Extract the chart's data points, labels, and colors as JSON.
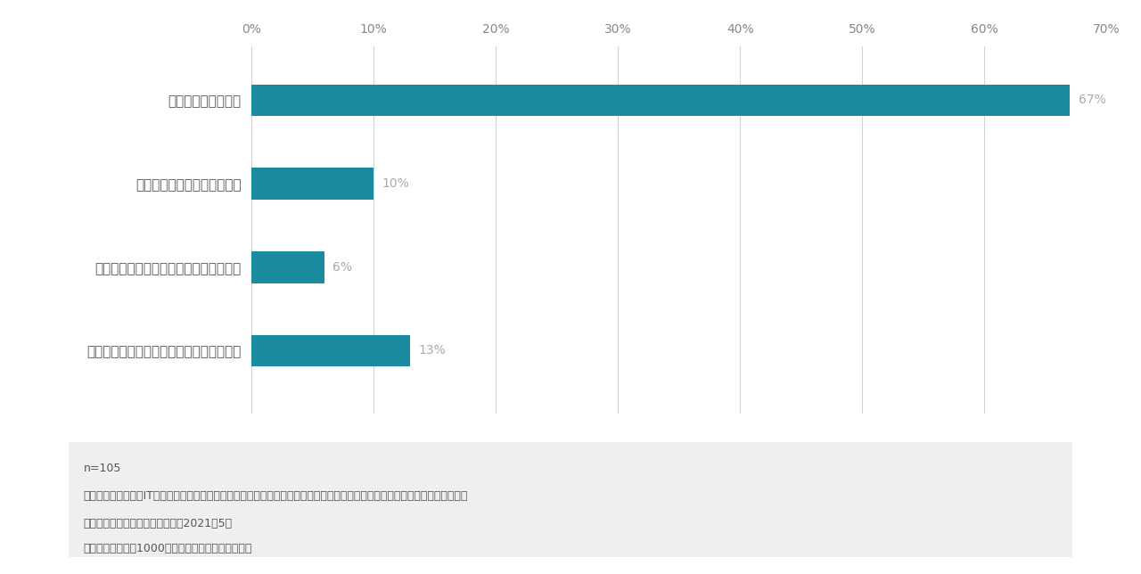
{
  "categories": [
    "実施予定はない（全社統制などの理由で）",
    "未実施で実施計画もないが、興味がある",
    "未実施だが、実施計画がある",
    "実施中で課題がある"
  ],
  "values": [
    13,
    6,
    10,
    67
  ],
  "labels": [
    "13%",
    "6%",
    "10%",
    "67%"
  ],
  "bar_color": "#1a8a9e",
  "background_color": "#ffffff",
  "xlim": [
    0,
    70
  ],
  "xticks": [
    0,
    10,
    20,
    30,
    40,
    50,
    60,
    70
  ],
  "xtick_labels": [
    "0%",
    "10%",
    "20%",
    "30%",
    "40%",
    "50%",
    "60%",
    "70%"
  ],
  "grid_color": "#d5d5d5",
  "label_color": "#aaaaaa",
  "tick_label_color": "#888888",
  "category_label_color": "#555555",
  "note_bg_color": "#efefef",
  "note_lines": [
    "n=105",
    "質問：現場部門（非IT部門）主体の業務デジタル化について、貴社における取り組み状況をお聞かせください。（ひとつだけ）",
    "出展：ドリーム・アーツ／調査：2021年5月",
    "回答者：従業員数1000名以上の大企業に所属する方"
  ],
  "bar_height": 0.38
}
